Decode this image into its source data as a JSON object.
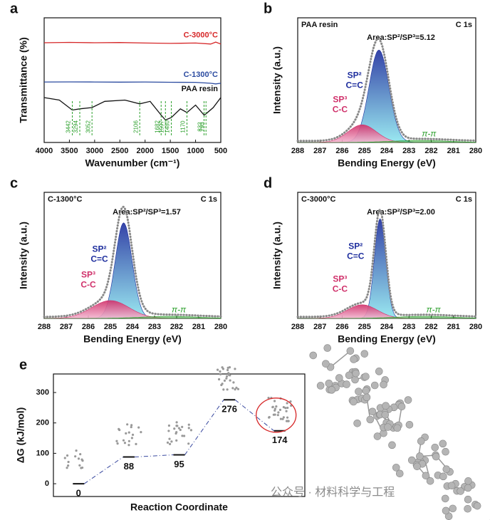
{
  "chart_data": [
    {
      "type": "line",
      "panel": "a",
      "xlabel": "Wavenumber (cm⁻¹)",
      "ylabel": "Transmittance (%)",
      "xlim": [
        4000,
        500
      ],
      "xticks": [
        4000,
        3500,
        3000,
        2500,
        2000,
        1500,
        1000,
        500
      ],
      "ylim": [
        0,
        100
      ],
      "series": [
        {
          "name": "C-3000°C",
          "color": "#d62728",
          "x": [
            4000,
            3500,
            3000,
            2500,
            2000,
            1500,
            1000,
            700,
            600,
            500
          ],
          "values": [
            80,
            80.3,
            80,
            80.2,
            79.8,
            79.5,
            79.8,
            79,
            80.5,
            79
          ]
        },
        {
          "name": "C-1300°C",
          "color": "#2b4ba0",
          "x": [
            4000,
            3500,
            3000,
            2500,
            2000,
            1500,
            1000,
            700,
            600,
            500
          ],
          "values": [
            48.5,
            48.6,
            48.5,
            48.4,
            48.5,
            48.3,
            48.2,
            47.5,
            47,
            47.5
          ]
        },
        {
          "name": "PAA resin",
          "color": "#111111",
          "x": [
            4000,
            3700,
            3442,
            3294,
            3052,
            2800,
            2400,
            2106,
            1900,
            1682,
            1597,
            1480,
            1300,
            1170,
            1000,
            832,
            793,
            650,
            500
          ],
          "values": [
            36,
            34,
            26,
            27,
            28,
            33,
            34,
            31,
            33,
            22,
            18,
            20,
            27,
            24,
            30,
            22,
            23,
            28,
            36
          ]
        }
      ],
      "peaks": [
        3442,
        3294,
        3052,
        2106,
        1682,
        1597,
        1480,
        1170,
        832,
        793
      ],
      "peak_color": "#2ca02c"
    },
    {
      "type": "xps",
      "panel": "b",
      "title": "PAA resin",
      "subtitle": "C 1s",
      "annotation": "Area:SP²/SP³=5.12",
      "xlabel": "Bending Energy (eV)",
      "ylabel": "Intensity (a.u.)",
      "xlim": [
        288,
        280
      ],
      "xticks": [
        288,
        287,
        286,
        285,
        284,
        283,
        282,
        281,
        280
      ],
      "ylim": [
        0,
        120
      ],
      "peaks": [
        {
          "label": [
            "SP²",
            "C=C"
          ],
          "center": 284.35,
          "height": 89,
          "fwhm": 1.05,
          "color": "#1f2f9e"
        },
        {
          "label": [
            "SP³",
            "C-C"
          ],
          "center": 285.1,
          "height": 17,
          "fwhm": 1.5,
          "color": "#d0306a"
        },
        {
          "label": [
            "π-π"
          ],
          "center": 282.5,
          "height": 2,
          "fwhm": 3,
          "color": "#2ca02c"
        }
      ]
    },
    {
      "type": "xps",
      "panel": "c",
      "title": "C-1300°C",
      "subtitle": "C 1s",
      "annotation": "Area:SP²/SP³=1.57",
      "xlabel": "Bending Energy (eV)",
      "ylabel": "Intensity (a.u.)",
      "xlim": [
        288,
        280
      ],
      "xticks": [
        288,
        287,
        286,
        285,
        284,
        283,
        282,
        281,
        280
      ],
      "ylim": [
        0,
        120
      ],
      "peaks": [
        {
          "label": [
            "SP²",
            "C=C"
          ],
          "center": 284.4,
          "height": 91,
          "fwhm": 0.9,
          "color": "#1f2f9e"
        },
        {
          "label": [
            "SP³",
            "C-C"
          ],
          "center": 285.0,
          "height": 17,
          "fwhm": 2.0,
          "color": "#d0306a"
        },
        {
          "label": [
            "π-π"
          ],
          "center": 282.3,
          "height": 2,
          "fwhm": 3,
          "color": "#2ca02c"
        }
      ]
    },
    {
      "type": "xps",
      "panel": "d",
      "title": "C-3000°C",
      "subtitle": "C 1s",
      "annotation": "Area:SP²/SP³=2.00",
      "xlabel": "Bending Energy (eV)",
      "ylabel": "Intensity (a.u.)",
      "xlim": [
        288,
        280
      ],
      "xticks": [
        288,
        287,
        286,
        285,
        284,
        283,
        282,
        281,
        280
      ],
      "ylim": [
        0,
        120
      ],
      "peaks": [
        {
          "label": [
            "SP²",
            "C=C"
          ],
          "center": 284.3,
          "height": 95,
          "fwhm": 0.6,
          "color": "#1f2f9e"
        },
        {
          "label": [
            "SP³",
            "C-C"
          ],
          "center": 285.1,
          "height": 13,
          "fwhm": 1.6,
          "color": "#d0306a"
        },
        {
          "label": [
            "π-π"
          ],
          "center": 282.3,
          "height": 2,
          "fwhm": 3,
          "color": "#2ca02c"
        }
      ]
    },
    {
      "type": "energy",
      "panel": "e",
      "xlabel": "Reaction Coordinate",
      "ylabel": "ΔG (kJ/mol)",
      "ylim": [
        -42,
        361
      ],
      "yticks": [
        0,
        100,
        200,
        300
      ],
      "values": [
        0,
        88,
        95,
        276,
        174
      ],
      "color": "#3a4aa0"
    }
  ],
  "watermark": "公众号 · 材料科学与工程"
}
